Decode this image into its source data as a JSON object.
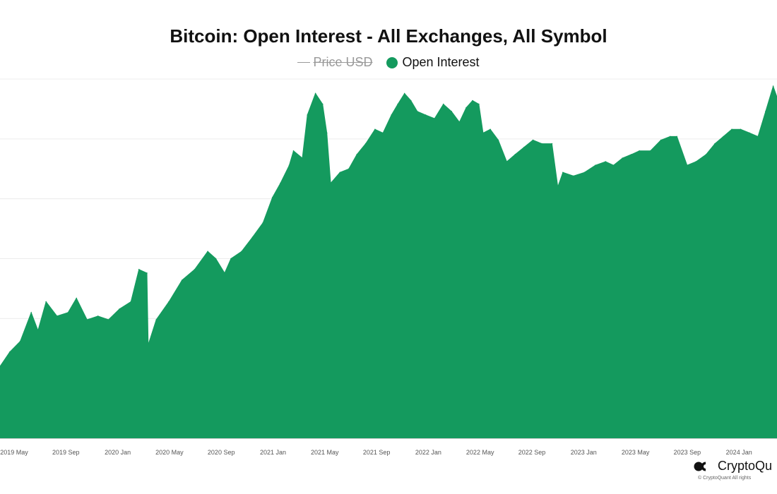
{
  "chart_data": {
    "type": "area",
    "title": "Bitcoin: Open Interest - All Exchanges, All Symbol",
    "legend": [
      {
        "name": "Price USD",
        "enabled": false
      },
      {
        "name": "Open Interest",
        "enabled": true
      }
    ],
    "legend_placement": "top-center",
    "grid": true,
    "color": "#149a5e",
    "x_tick_labels": [
      "2019 May",
      "2019 Sep",
      "2020 Jan",
      "2020 May",
      "2020 Sep",
      "2021 Jan",
      "2021 May",
      "2021 Sep",
      "2022 Jan",
      "2022 May",
      "2022 Sep",
      "2023 Jan",
      "2023 May",
      "2023 Sep",
      "2024 Jan"
    ],
    "xlim": [
      "2019-03-28",
      "2024-04-10"
    ],
    "ylim": [
      0,
      100
    ],
    "x": [
      "2019-03-28",
      "2019-04-20",
      "2019-05-15",
      "2019-06-10",
      "2019-06-26",
      "2019-07-15",
      "2019-08-10",
      "2019-09-05",
      "2019-09-25",
      "2019-10-20",
      "2019-11-15",
      "2019-12-10",
      "2020-01-05",
      "2020-02-01",
      "2020-02-20",
      "2020-03-10",
      "2020-03-13",
      "2020-04-01",
      "2020-05-01",
      "2020-06-01",
      "2020-07-01",
      "2020-08-01",
      "2020-08-20",
      "2020-09-10",
      "2020-09-25",
      "2020-10-20",
      "2020-11-15",
      "2020-12-10",
      "2021-01-01",
      "2021-01-20",
      "2021-02-10",
      "2021-02-20",
      "2021-03-13",
      "2021-03-25",
      "2021-04-13",
      "2021-04-30",
      "2021-05-10",
      "2021-05-19",
      "2021-06-10",
      "2021-07-01",
      "2021-07-20",
      "2021-08-10",
      "2021-09-01",
      "2021-09-20",
      "2021-10-10",
      "2021-10-25",
      "2021-11-10",
      "2021-11-25",
      "2021-12-10",
      "2021-12-30",
      "2022-01-20",
      "2022-02-10",
      "2022-03-01",
      "2022-03-20",
      "2022-04-05",
      "2022-04-20",
      "2022-05-05",
      "2022-05-15",
      "2022-06-01",
      "2022-06-20",
      "2022-07-10",
      "2022-07-30",
      "2022-08-20",
      "2022-09-10",
      "2022-10-01",
      "2022-10-25",
      "2022-11-08",
      "2022-11-20",
      "2022-12-15",
      "2023-01-10",
      "2023-02-05",
      "2023-03-01",
      "2023-03-20",
      "2023-04-10",
      "2023-05-01",
      "2023-05-20",
      "2023-06-15",
      "2023-07-10",
      "2023-08-01",
      "2023-08-17",
      "2023-09-10",
      "2023-10-01",
      "2023-10-25",
      "2023-11-15",
      "2023-12-05",
      "2023-12-25",
      "2024-01-15",
      "2024-02-05",
      "2024-02-25",
      "2024-03-14",
      "2024-04-01",
      "2024-04-10"
    ],
    "series": [
      {
        "name": "Open Interest",
        "values": [
          20,
          24,
          27,
          35,
          30,
          38,
          34,
          35,
          39,
          33,
          34,
          33,
          36,
          38,
          47,
          46,
          26,
          33,
          38,
          44,
          47,
          52,
          50,
          46,
          50,
          52,
          56,
          60,
          67,
          71,
          76,
          80,
          78,
          90,
          96,
          93,
          85,
          71,
          74,
          75,
          79,
          82,
          86,
          85,
          90,
          93,
          96,
          94,
          91,
          90,
          89,
          93,
          91,
          88,
          92,
          94,
          93,
          85,
          86,
          83,
          77,
          79,
          81,
          83,
          82,
          82,
          70,
          74,
          73,
          74,
          76,
          77,
          76,
          78,
          79,
          80,
          80,
          83,
          84,
          84,
          76,
          77,
          79,
          82,
          84,
          86,
          86,
          85,
          84,
          91,
          98,
          95
        ]
      }
    ]
  },
  "branding": {
    "logo_text": "CryptoQu",
    "copyright": "© CryptoQuant All rights"
  }
}
